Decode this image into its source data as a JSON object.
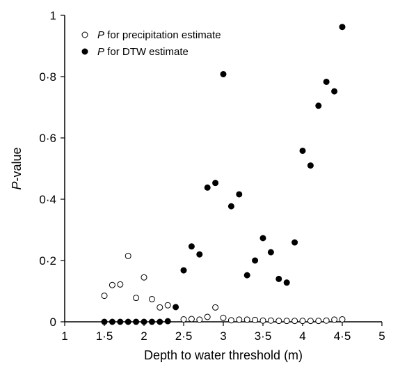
{
  "chart_data": {
    "type": "scatter",
    "title": "",
    "xlabel": "Depth to water threshold (m)",
    "ylabel_italic": "P",
    "ylabel_rest": "-value",
    "xlim": [
      1,
      5
    ],
    "ylim": [
      0,
      1
    ],
    "xticks": [
      1,
      1.5,
      2,
      2.5,
      3,
      3.5,
      4,
      4.5,
      5
    ],
    "xtick_labels": [
      "1",
      "1·5",
      "2",
      "2·5",
      "3",
      "3·5",
      "4",
      "4·5",
      "5"
    ],
    "yticks": [
      0,
      0.2,
      0.4,
      0.6,
      0.8,
      1
    ],
    "ytick_labels": [
      "0",
      "0·2",
      "0·4",
      "0·6",
      "0·8",
      "1"
    ],
    "grid": false,
    "legend_position": "top-left",
    "series": [
      {
        "name_italic": "P",
        "name_rest": " for precipitation estimate",
        "marker": "open-circle",
        "x": [
          1.5,
          1.6,
          1.7,
          1.8,
          1.9,
          2.0,
          2.1,
          2.2,
          2.3,
          2.5,
          2.6,
          2.7,
          2.8,
          2.9,
          3.0,
          3.1,
          3.2,
          3.3,
          3.4,
          3.5,
          3.6,
          3.7,
          3.8,
          3.9,
          4.0,
          4.1,
          4.2,
          4.3,
          4.4,
          4.5
        ],
        "y": [
          0.085,
          0.12,
          0.122,
          0.215,
          0.078,
          0.145,
          0.074,
          0.047,
          0.054,
          0.008,
          0.009,
          0.007,
          0.016,
          0.047,
          0.013,
          0.005,
          0.007,
          0.007,
          0.006,
          0.004,
          0.004,
          0.003,
          0.003,
          0.003,
          0.003,
          0.003,
          0.003,
          0.004,
          0.007,
          0.008
        ]
      },
      {
        "name_italic": "P",
        "name_rest": " for DTW estimate",
        "marker": "filled-circle",
        "x": [
          1.5,
          1.6,
          1.7,
          1.8,
          1.9,
          2.0,
          2.1,
          2.2,
          2.3,
          2.4,
          2.5,
          2.6,
          2.7,
          2.8,
          2.9,
          3.0,
          3.1,
          3.2,
          3.3,
          3.4,
          3.5,
          3.6,
          3.7,
          3.8,
          3.9,
          4.0,
          4.1,
          4.2,
          4.3,
          4.4,
          4.5
        ],
        "y": [
          0.0,
          0.0,
          0.0,
          0.0,
          0.0,
          0.0,
          0.0,
          0.0,
          0.002,
          0.048,
          0.168,
          0.246,
          0.22,
          0.438,
          0.453,
          0.808,
          0.377,
          0.416,
          0.152,
          0.2,
          0.273,
          0.227,
          0.14,
          0.128,
          0.259,
          0.558,
          0.51,
          0.705,
          0.783,
          0.752,
          0.962
        ]
      }
    ]
  }
}
